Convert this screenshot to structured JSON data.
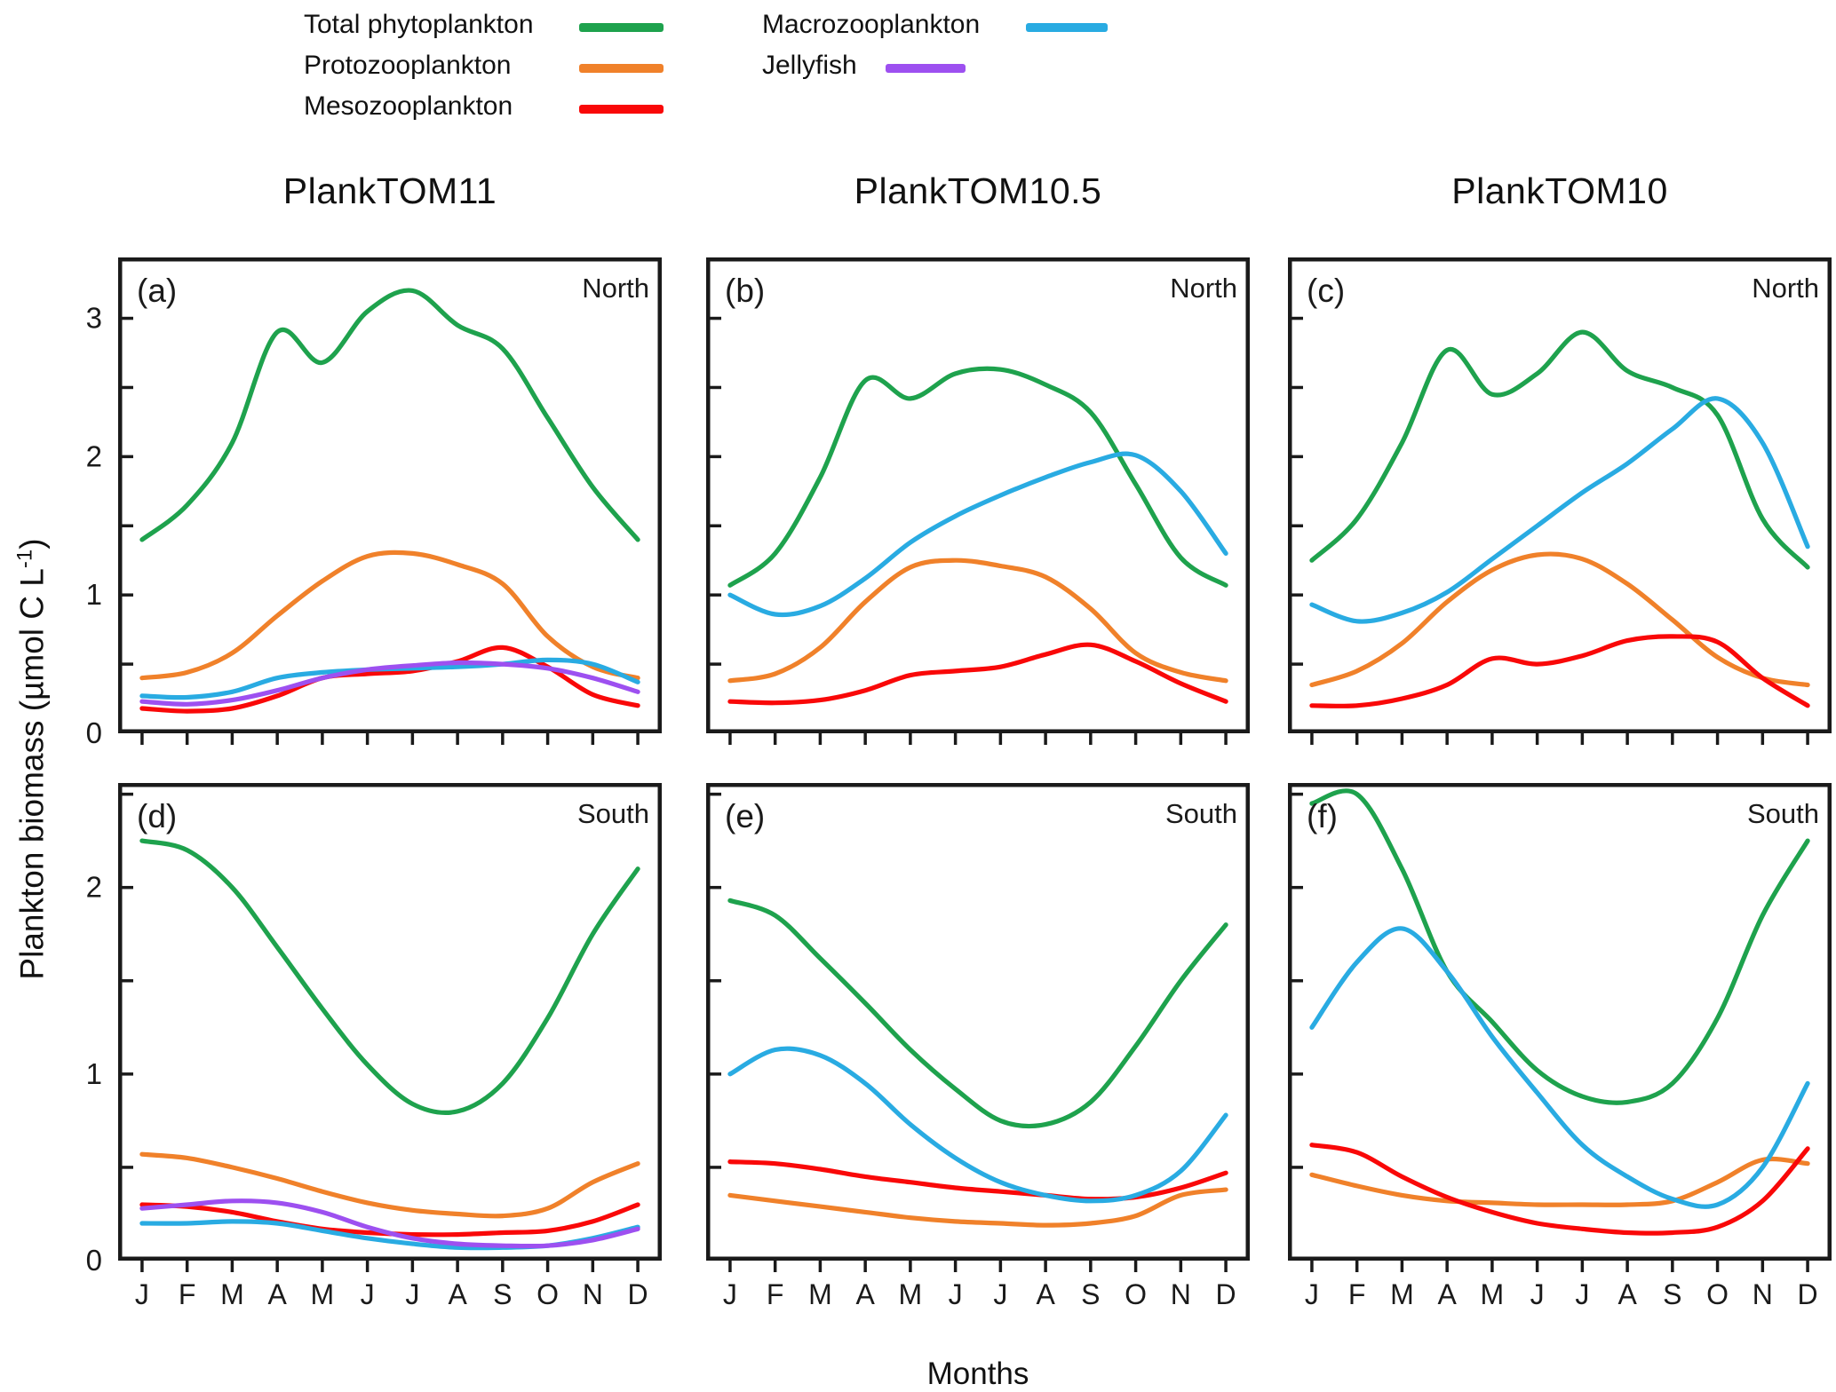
{
  "legend": {
    "items": [
      {
        "label": "Total phytoplankton",
        "series": "phytoplankton",
        "column": 1
      },
      {
        "label": "Protozooplankton",
        "series": "protozooplankton",
        "column": 1
      },
      {
        "label": "Mesozooplankton",
        "series": "mesozooplankton",
        "column": 1
      },
      {
        "label": "Macrozooplankton",
        "series": "macrozooplankton",
        "column": 2
      },
      {
        "label": "Jellyfish",
        "series": "jellyfish",
        "column": 2
      }
    ]
  },
  "column_titles": [
    "PlankTOM11",
    "PlankTOM10.5",
    "PlankTOM10"
  ],
  "axis": {
    "ylabel_prefix": "Plankton biomass (µmol C L",
    "ylabel_sup": "-1",
    "ylabel_suffix": ")",
    "xlabel": "Months",
    "months": [
      "J",
      "F",
      "M",
      "A",
      "M",
      "J",
      "J",
      "A",
      "S",
      "O",
      "N",
      "D"
    ],
    "top_row_ytick_labels": [
      "0",
      "1",
      "2",
      "3"
    ],
    "bottom_row_ytick_labels": [
      "0",
      "1",
      "2"
    ]
  },
  "colors": {
    "phytoplankton": "#1ea24d",
    "protozooplankton": "#f0812a",
    "mesozooplankton": "#f90808",
    "macrozooplankton": "#29abe2",
    "jellyfish": "#9d50f0",
    "frame": "#1a1a1a"
  },
  "chart_data": [
    {
      "id": "a",
      "panel_label": "(a)",
      "model": "PlankTOM11",
      "region": "North",
      "type": "line",
      "row": 0,
      "col": 0,
      "x_categories": [
        "J",
        "F",
        "M",
        "A",
        "M",
        "J",
        "J",
        "A",
        "S",
        "O",
        "N",
        "D"
      ],
      "ylim": [
        0,
        3.44
      ],
      "ytick_step": 0.5,
      "ytick_labels": [
        0,
        1,
        2,
        3
      ],
      "grid": false,
      "series": [
        {
          "name": "Total phytoplankton",
          "key": "phytoplankton",
          "values": [
            1.4,
            1.65,
            2.1,
            2.9,
            2.68,
            3.05,
            3.2,
            2.95,
            2.78,
            2.28,
            1.78,
            1.4
          ]
        },
        {
          "name": "Protozooplankton",
          "key": "protozooplankton",
          "values": [
            0.4,
            0.44,
            0.58,
            0.85,
            1.1,
            1.28,
            1.3,
            1.22,
            1.08,
            0.7,
            0.48,
            0.4
          ]
        },
        {
          "name": "Mesozooplankton",
          "key": "mesozooplankton",
          "values": [
            0.18,
            0.16,
            0.18,
            0.27,
            0.4,
            0.43,
            0.45,
            0.52,
            0.62,
            0.48,
            0.28,
            0.2
          ]
        },
        {
          "name": "Macrozooplankton",
          "key": "macrozooplankton",
          "values": [
            0.27,
            0.26,
            0.3,
            0.4,
            0.44,
            0.46,
            0.47,
            0.48,
            0.5,
            0.53,
            0.5,
            0.37
          ]
        },
        {
          "name": "Jellyfish",
          "key": "jellyfish",
          "values": [
            0.23,
            0.21,
            0.24,
            0.31,
            0.4,
            0.46,
            0.49,
            0.51,
            0.5,
            0.47,
            0.4,
            0.3
          ]
        }
      ]
    },
    {
      "id": "b",
      "panel_label": "(b)",
      "model": "PlankTOM10.5",
      "region": "North",
      "type": "line",
      "row": 0,
      "col": 1,
      "x_categories": [
        "J",
        "F",
        "M",
        "A",
        "M",
        "J",
        "J",
        "A",
        "S",
        "O",
        "N",
        "D"
      ],
      "ylim": [
        0,
        3.44
      ],
      "ytick_step": 0.5,
      "ytick_labels": [
        0,
        1,
        2,
        3
      ],
      "grid": false,
      "series": [
        {
          "name": "Total phytoplankton",
          "key": "phytoplankton",
          "values": [
            1.07,
            1.3,
            1.85,
            2.55,
            2.42,
            2.6,
            2.63,
            2.52,
            2.32,
            1.8,
            1.27,
            1.07
          ]
        },
        {
          "name": "Protozooplankton",
          "key": "protozooplankton",
          "values": [
            0.38,
            0.43,
            0.62,
            0.95,
            1.2,
            1.25,
            1.21,
            1.13,
            0.9,
            0.58,
            0.44,
            0.38
          ]
        },
        {
          "name": "Mesozooplankton",
          "key": "mesozooplankton",
          "values": [
            0.23,
            0.22,
            0.24,
            0.31,
            0.42,
            0.45,
            0.48,
            0.57,
            0.64,
            0.52,
            0.36,
            0.23
          ]
        },
        {
          "name": "Macrozooplankton",
          "key": "macrozooplankton",
          "values": [
            1.0,
            0.86,
            0.92,
            1.12,
            1.38,
            1.57,
            1.72,
            1.85,
            1.96,
            2.01,
            1.75,
            1.3
          ]
        }
      ]
    },
    {
      "id": "c",
      "panel_label": "(c)",
      "model": "PlankTOM10",
      "region": "North",
      "type": "line",
      "row": 0,
      "col": 2,
      "x_categories": [
        "J",
        "F",
        "M",
        "A",
        "M",
        "J",
        "J",
        "A",
        "S",
        "O",
        "N",
        "D"
      ],
      "ylim": [
        0,
        3.44
      ],
      "ytick_step": 0.5,
      "ytick_labels": [
        0,
        1,
        2,
        3
      ],
      "grid": false,
      "series": [
        {
          "name": "Total phytoplankton",
          "key": "phytoplankton",
          "values": [
            1.25,
            1.55,
            2.1,
            2.77,
            2.45,
            2.6,
            2.9,
            2.62,
            2.5,
            2.3,
            1.55,
            1.2
          ]
        },
        {
          "name": "Protozooplankton",
          "key": "protozooplankton",
          "values": [
            0.35,
            0.45,
            0.65,
            0.95,
            1.18,
            1.29,
            1.26,
            1.08,
            0.82,
            0.55,
            0.4,
            0.35
          ]
        },
        {
          "name": "Mesozooplankton",
          "key": "mesozooplankton",
          "values": [
            0.2,
            0.2,
            0.25,
            0.35,
            0.54,
            0.5,
            0.56,
            0.67,
            0.7,
            0.66,
            0.4,
            0.2
          ]
        },
        {
          "name": "Macrozooplankton",
          "key": "macrozooplankton",
          "values": [
            0.93,
            0.81,
            0.87,
            1.02,
            1.26,
            1.5,
            1.74,
            1.95,
            2.2,
            2.42,
            2.1,
            1.35
          ]
        }
      ]
    },
    {
      "id": "d",
      "panel_label": "(d)",
      "model": "PlankTOM11",
      "region": "South",
      "type": "line",
      "row": 1,
      "col": 0,
      "x_categories": [
        "J",
        "F",
        "M",
        "A",
        "M",
        "J",
        "J",
        "A",
        "S",
        "O",
        "N",
        "D"
      ],
      "ylim": [
        0,
        2.56
      ],
      "ytick_step": 0.5,
      "ytick_labels": [
        0,
        1,
        2
      ],
      "grid": false,
      "series": [
        {
          "name": "Total phytoplankton",
          "key": "phytoplankton",
          "values": [
            2.25,
            2.2,
            2.0,
            1.68,
            1.35,
            1.05,
            0.84,
            0.8,
            0.95,
            1.3,
            1.75,
            2.1
          ]
        },
        {
          "name": "Protozooplankton",
          "key": "protozooplankton",
          "values": [
            0.57,
            0.55,
            0.5,
            0.44,
            0.37,
            0.31,
            0.27,
            0.25,
            0.24,
            0.28,
            0.42,
            0.52
          ]
        },
        {
          "name": "Mesozooplankton",
          "key": "mesozooplankton",
          "values": [
            0.3,
            0.29,
            0.26,
            0.21,
            0.17,
            0.15,
            0.14,
            0.14,
            0.15,
            0.16,
            0.21,
            0.3
          ]
        },
        {
          "name": "Macrozooplankton",
          "key": "macrozooplankton",
          "values": [
            0.2,
            0.2,
            0.21,
            0.2,
            0.16,
            0.12,
            0.09,
            0.07,
            0.07,
            0.08,
            0.12,
            0.18
          ]
        },
        {
          "name": "Jellyfish",
          "key": "jellyfish",
          "values": [
            0.28,
            0.3,
            0.32,
            0.31,
            0.26,
            0.18,
            0.12,
            0.09,
            0.08,
            0.08,
            0.11,
            0.17
          ]
        }
      ]
    },
    {
      "id": "e",
      "panel_label": "(e)",
      "model": "PlankTOM10.5",
      "region": "South",
      "type": "line",
      "row": 1,
      "col": 1,
      "x_categories": [
        "J",
        "F",
        "M",
        "A",
        "M",
        "J",
        "J",
        "A",
        "S",
        "O",
        "N",
        "D"
      ],
      "ylim": [
        0,
        2.56
      ],
      "ytick_step": 0.5,
      "ytick_labels": [
        0,
        1,
        2
      ],
      "grid": false,
      "series": [
        {
          "name": "Total phytoplankton",
          "key": "phytoplankton",
          "values": [
            1.93,
            1.85,
            1.62,
            1.38,
            1.13,
            0.92,
            0.75,
            0.73,
            0.85,
            1.15,
            1.5,
            1.8
          ]
        },
        {
          "name": "Protozooplankton",
          "key": "protozooplankton",
          "values": [
            0.35,
            0.32,
            0.29,
            0.26,
            0.23,
            0.21,
            0.2,
            0.19,
            0.2,
            0.24,
            0.35,
            0.38
          ]
        },
        {
          "name": "Mesozooplankton",
          "key": "mesozooplankton",
          "values": [
            0.53,
            0.52,
            0.49,
            0.45,
            0.42,
            0.39,
            0.37,
            0.35,
            0.33,
            0.34,
            0.39,
            0.47
          ]
        },
        {
          "name": "Macrozooplankton",
          "key": "macrozooplankton",
          "values": [
            1.0,
            1.13,
            1.1,
            0.95,
            0.73,
            0.55,
            0.42,
            0.35,
            0.32,
            0.35,
            0.48,
            0.78
          ]
        }
      ]
    },
    {
      "id": "f",
      "panel_label": "(f)",
      "model": "PlankTOM10",
      "region": "South",
      "type": "line",
      "row": 1,
      "col": 2,
      "x_categories": [
        "J",
        "F",
        "M",
        "A",
        "M",
        "J",
        "J",
        "A",
        "S",
        "O",
        "N",
        "D"
      ],
      "ylim": [
        0,
        2.56
      ],
      "ytick_step": 0.5,
      "ytick_labels": [
        0,
        1,
        2
      ],
      "grid": false,
      "series": [
        {
          "name": "Total phytoplankton",
          "key": "phytoplankton",
          "values": [
            2.45,
            2.5,
            2.1,
            1.55,
            1.28,
            1.02,
            0.88,
            0.85,
            0.95,
            1.3,
            1.85,
            2.25
          ]
        },
        {
          "name": "Protozooplankton",
          "key": "protozooplankton",
          "values": [
            0.46,
            0.4,
            0.35,
            0.32,
            0.31,
            0.3,
            0.3,
            0.3,
            0.32,
            0.42,
            0.54,
            0.52
          ]
        },
        {
          "name": "Mesozooplankton",
          "key": "mesozooplankton",
          "values": [
            0.62,
            0.58,
            0.45,
            0.34,
            0.26,
            0.2,
            0.17,
            0.15,
            0.15,
            0.18,
            0.32,
            0.6
          ]
        },
        {
          "name": "Macrozooplankton",
          "key": "macrozooplankton",
          "values": [
            1.25,
            1.6,
            1.78,
            1.55,
            1.2,
            0.9,
            0.62,
            0.45,
            0.33,
            0.3,
            0.5,
            0.95
          ]
        }
      ]
    }
  ]
}
